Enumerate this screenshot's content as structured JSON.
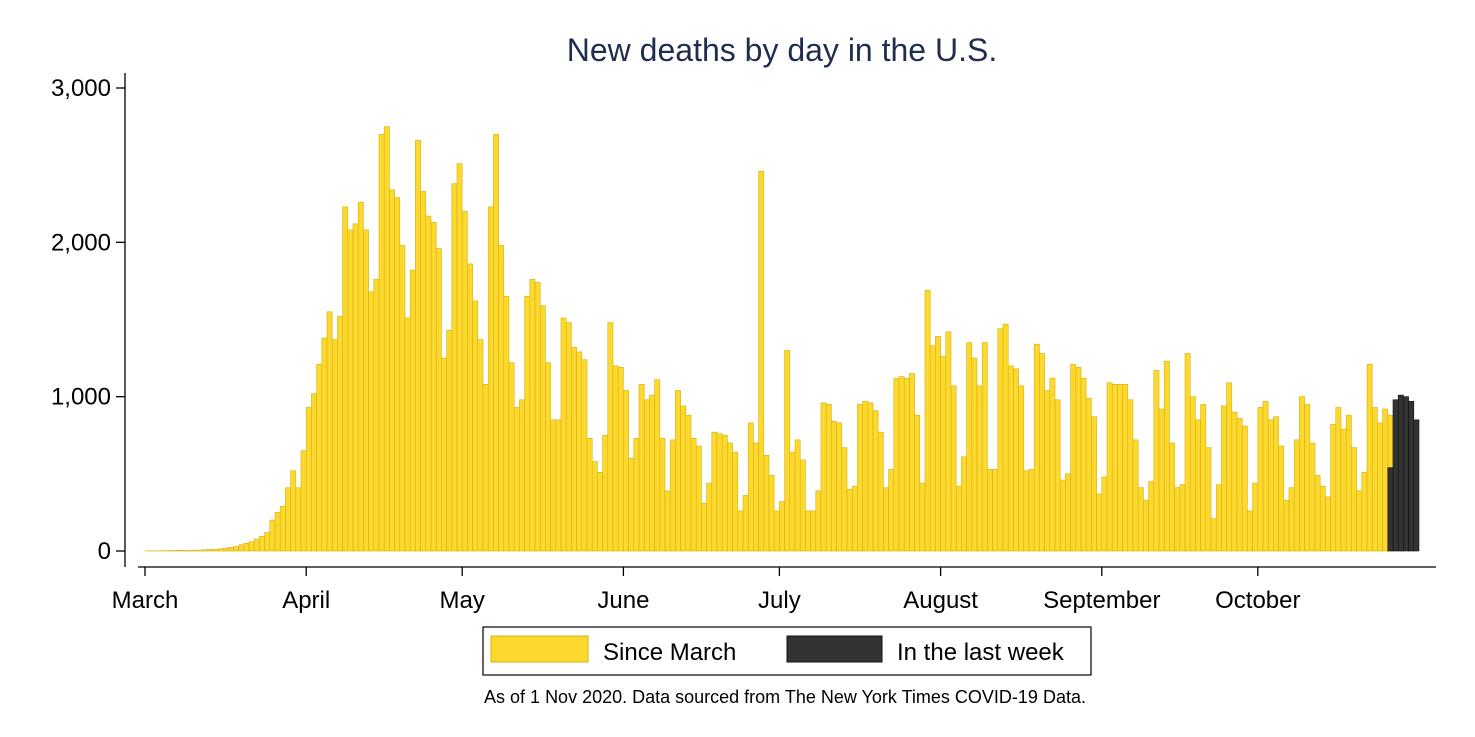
{
  "chart_data": {
    "type": "bar",
    "title": "New deaths by day in the U.S.",
    "xlabel": "",
    "ylabel": "",
    "ylim": [
      0,
      3000
    ],
    "yticks": [
      0,
      1000,
      2000,
      3000
    ],
    "ytick_labels": [
      "0",
      "1,000",
      "2,000",
      "3,000"
    ],
    "x_start_date": "2020-03-01",
    "xticks": [
      {
        "label": "March",
        "date": "2020-03-01"
      },
      {
        "label": "April",
        "date": "2020-04-01"
      },
      {
        "label": "May",
        "date": "2020-05-01"
      },
      {
        "label": "June",
        "date": "2020-06-01"
      },
      {
        "label": "July",
        "date": "2020-07-01"
      },
      {
        "label": "August",
        "date": "2020-08-01"
      },
      {
        "label": "September",
        "date": "2020-09-01"
      },
      {
        "label": "October",
        "date": "2020-10-01"
      }
    ],
    "grid": false,
    "legend_position": "bottom",
    "series": [
      {
        "name": "Since March",
        "color": "#fdd82e",
        "edge_color": "#d4b30c",
        "start_date": "2020-03-01",
        "values": [
          1,
          1,
          1,
          2,
          3,
          3,
          4,
          4,
          3,
          5,
          6,
          8,
          10,
          10,
          14,
          18,
          24,
          28,
          40,
          50,
          60,
          78,
          95,
          120,
          200,
          250,
          290,
          410,
          520,
          410,
          650,
          930,
          1020,
          1210,
          1380,
          1550,
          1370,
          1520,
          2230,
          2080,
          2120,
          2260,
          2080,
          1680,
          1760,
          2700,
          2750,
          2340,
          2290,
          1980,
          1510,
          1820,
          2660,
          2330,
          2170,
          2130,
          1960,
          1250,
          1430,
          2380,
          2510,
          2200,
          1860,
          1620,
          1370,
          1080,
          2230,
          2700,
          1980,
          1650,
          1220,
          930,
          980,
          1650,
          1760,
          1740,
          1590,
          1220,
          850,
          850,
          1510,
          1480,
          1320,
          1290,
          1240,
          730,
          580,
          510,
          750,
          1480,
          1200,
          1190,
          1040,
          600,
          730,
          1080,
          980,
          1010,
          1110,
          730,
          390,
          720,
          1040,
          940,
          880,
          730,
          680,
          310,
          440,
          770,
          760,
          750,
          700,
          640,
          260,
          360,
          830,
          700,
          2460,
          620,
          490,
          260,
          320,
          1300,
          640,
          720,
          590,
          260,
          260,
          390,
          960,
          950,
          840,
          830,
          670,
          400,
          420,
          950,
          970,
          960,
          910,
          770,
          410,
          530,
          1120,
          1130,
          1120,
          1150,
          880,
          440,
          1690,
          1330,
          1390,
          1260,
          1420,
          1070,
          420,
          610,
          1350,
          1250,
          1070,
          1350,
          530,
          530,
          1440,
          1470,
          1200,
          1180,
          1070,
          520,
          530,
          1340,
          1280,
          1040,
          1120,
          980,
          460,
          500,
          1210,
          1190,
          1120,
          990,
          870,
          370,
          480,
          1090,
          1080,
          1080,
          1080,
          980,
          720,
          410,
          330,
          450,
          1170,
          920,
          1230,
          700,
          410,
          430,
          1280,
          1000,
          850,
          950,
          670,
          210,
          430,
          940,
          1090,
          900,
          860,
          810,
          260,
          440,
          930,
          970,
          850,
          870,
          680,
          330,
          410,
          720,
          1000,
          950,
          700,
          490,
          420,
          350,
          820,
          930,
          790,
          880,
          670,
          390,
          510,
          1210,
          930,
          830,
          920,
          880,
          330,
          930
        ]
      },
      {
        "name": "In the last week",
        "color": "#333333",
        "edge_color": "#111111",
        "start_date": "2020-10-26",
        "values": [
          540,
          980,
          1010,
          1000,
          970,
          850
        ]
      }
    ]
  },
  "note": "As of  1 Nov 2020. Data sourced from The New York Times COVID-19 Data."
}
